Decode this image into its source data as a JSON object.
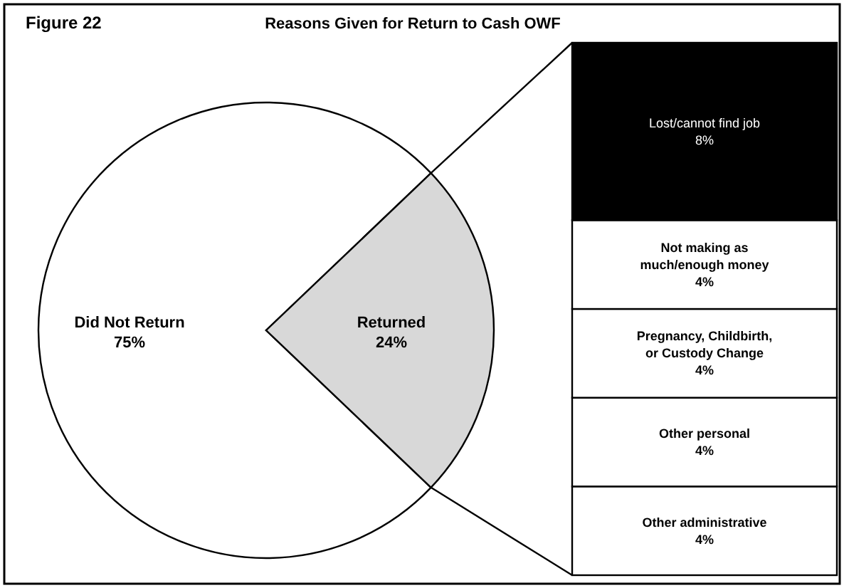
{
  "chart_data": [
    {
      "type": "pie",
      "title": "Reasons Given for Return to Cash OWF",
      "annotations": [
        "Figure 22"
      ],
      "categories": [
        "Did Not Return",
        "Returned"
      ],
      "values": [
        75,
        24
      ],
      "colors": [
        "#ffffff",
        "#d8d8d8"
      ],
      "value_labels": [
        "75%",
        "24%"
      ]
    },
    {
      "type": "bar",
      "stacked": true,
      "tick_labels": false,
      "categories": [
        null
      ],
      "series": [
        {
          "name": "Other administrative",
          "color": "#ffffff",
          "values": [
            4
          ],
          "value_labels": [
            "4%"
          ]
        },
        {
          "name": "Other personal",
          "color": "#ffffff",
          "values": [
            4
          ],
          "value_labels": [
            "4%"
          ]
        },
        {
          "name": "Pregnancy, Childbirth, or Custody Change",
          "color": "#ffffff",
          "values": [
            4
          ],
          "value_labels": [
            "4%"
          ]
        },
        {
          "name": "Not making as much/enough money",
          "color": "#ffffff",
          "values": [
            4
          ],
          "value_labels": [
            "4%"
          ]
        },
        {
          "name": "Lost/cannot find job",
          "color": "#000000",
          "values": [
            8
          ],
          "value_labels": [
            "8%"
          ]
        }
      ]
    }
  ]
}
